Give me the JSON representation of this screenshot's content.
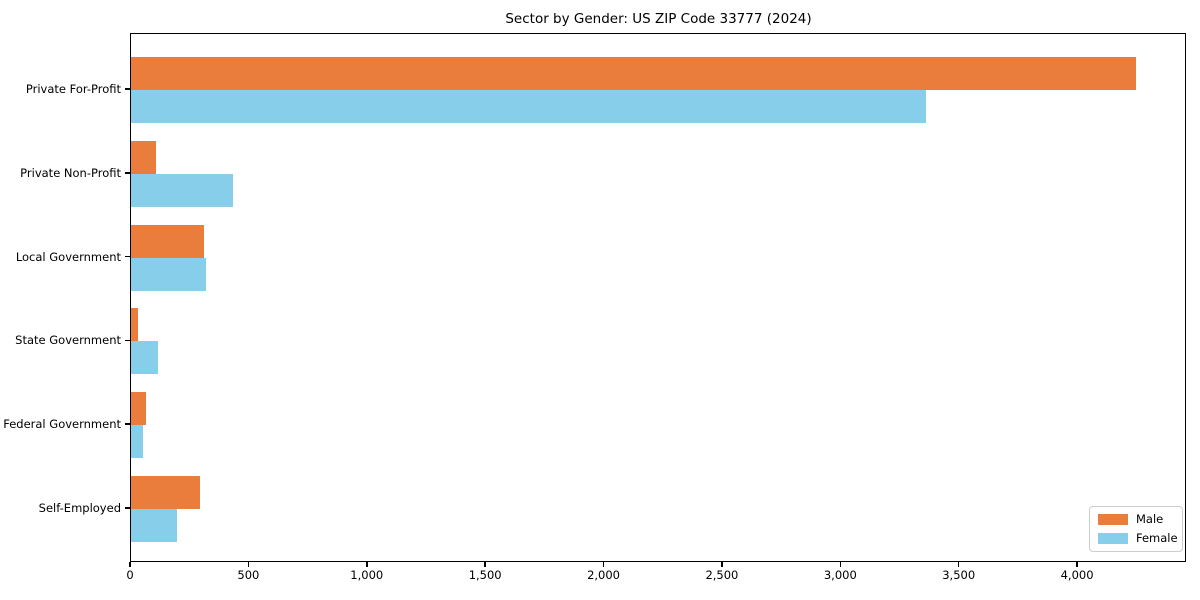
{
  "title": "Sector by Gender: US ZIP Code 33777 (2024)",
  "chart_data": {
    "type": "bar",
    "orientation": "horizontal",
    "title": "Sector by Gender: US ZIP Code 33777 (2024)",
    "categories": [
      "Private For-Profit",
      "Private Non-Profit",
      "Local Government",
      "State Government",
      "Federal Government",
      "Self-Employed"
    ],
    "series": [
      {
        "name": "Male",
        "color": "#EB7D3C",
        "values": [
          4245,
          106,
          309,
          30,
          63,
          292
        ]
      },
      {
        "name": "Female",
        "color": "#87CEEB",
        "values": [
          3357,
          431,
          317,
          114,
          51,
          194
        ]
      }
    ],
    "xlabel": "",
    "ylabel": "",
    "xlim": [
      0,
      4460
    ],
    "xticks": [
      0,
      500,
      1000,
      1500,
      2000,
      2500,
      3000,
      3500,
      4000
    ],
    "xtick_labels": [
      "0",
      "500",
      "1,000",
      "1,500",
      "2,000",
      "2,500",
      "3,000",
      "3,500",
      "4,000"
    ],
    "grid": false,
    "legend": {
      "position": "lower right",
      "entries": [
        "Male",
        "Female"
      ]
    }
  }
}
